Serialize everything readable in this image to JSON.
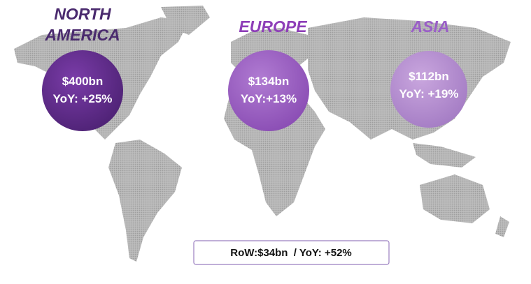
{
  "regions": [
    {
      "name": [
        "NORTH",
        "AMERICA"
      ],
      "value": "$400bn",
      "yoy": "YoY: +25%"
    },
    {
      "name": [
        "EUROPE"
      ],
      "value": "$134bn",
      "yoy": "YoY:+13%"
    },
    {
      "name": [
        "ASIA"
      ],
      "value": "$112bn",
      "yoy": "YoY: +19%"
    }
  ],
  "rest_of_world": "RoW:$34bn  / YoY: +52%"
}
